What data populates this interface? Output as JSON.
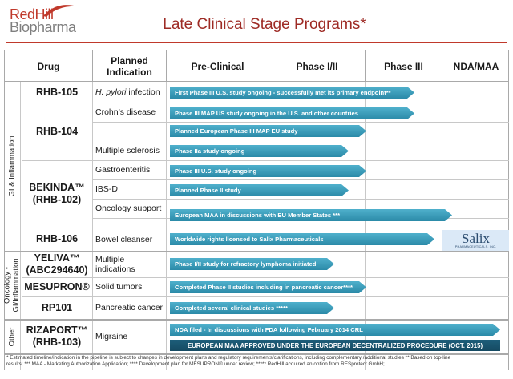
{
  "logo": {
    "line1": "RedHill",
    "line2": "Biopharma"
  },
  "title": "Late Clinical Stage Programs*",
  "header": {
    "drug": "Drug",
    "indication": "Planned\nIndication",
    "stage1": "Pre-Clinical",
    "stage2": "Phase I/II",
    "stage3": "Phase III",
    "stage4": "NDA/MAA"
  },
  "groups": {
    "gi": "GI & Inflammation",
    "onc": "Oncology -\nGI/Inflammation",
    "other": "Other"
  },
  "drugs": {
    "rhb105": "RHB-105",
    "rhb104": "RHB-104",
    "bekinda": "BEKINDA™\n(RHB-102)",
    "rhb106": "RHB-106",
    "yeliva": "YELIVA™\n(ABC294640)",
    "mesupron": "MESUPRON®",
    "rp101": "RP101",
    "rizaport": "RIZAPORT™\n(RHB-103)"
  },
  "indications": {
    "hpylori_italic": "H. pylori",
    "hpylori_rest": " infection",
    "crohns": "Crohn’s disease",
    "ms": "Multiple sclerosis",
    "gastro": "Gastroenteritis",
    "ibsd": "IBS-D",
    "oncsupport": "Oncology support",
    "bowel": "Bowel cleanser",
    "multiple": "Multiple indications",
    "solid": "Solid tumors",
    "pancreatic": "Pancreatic cancer",
    "migraine": "Migraine"
  },
  "arrows": {
    "a1": "First  Phase III U.S. study ongoing - successfully met its primary endpoint**",
    "a2": "Phase III MAP US study ongoing in the U.S. and other countries",
    "a3": "Planned European Phase III MAP EU study",
    "a4": "Phase IIa study ongoing",
    "a5": "Phase III U.S. study ongoing",
    "a6": "Planned Phase II study",
    "a7": "European MAA in discussions with EU Member States ***",
    "a8": "Worldwide rights licensed to Salix Pharmaceuticals",
    "a9": "Phase I/II study for refractory lymphoma initiated",
    "a10": "Completed Phase II studies including in pancreatic cancer****",
    "a11": "Completed several clinical studies *****",
    "a12": "NDA filed - In discussions with FDA following February 2014 CRL"
  },
  "banner": "EUROPEAN MAA APPROVED UNDER THE EUROPEAN DECENTRALIZED  PROCEDURE (OCT. 2015)",
  "salix": {
    "name": "Salix",
    "sub": "PHARMACEUTICALS, INC."
  },
  "footnote": {
    "line1": "*    Estimated timeline/indication in the pipeline is subject to changes in development plans and regulatory requirements/clarifications, including complementary /additional studies ** Based on top-line",
    "line2": "results; *** MAA - Marketing Authorization Application; **** Development  plan for MESUPRON® under review; *****  RedHill acquired an option from RESprotect GmbH;"
  },
  "colors": {
    "accent": "#c0392b",
    "arrow": "#2b8aa8",
    "banner": "#1d5e7a",
    "salix_bg": "#dbe9f7"
  }
}
